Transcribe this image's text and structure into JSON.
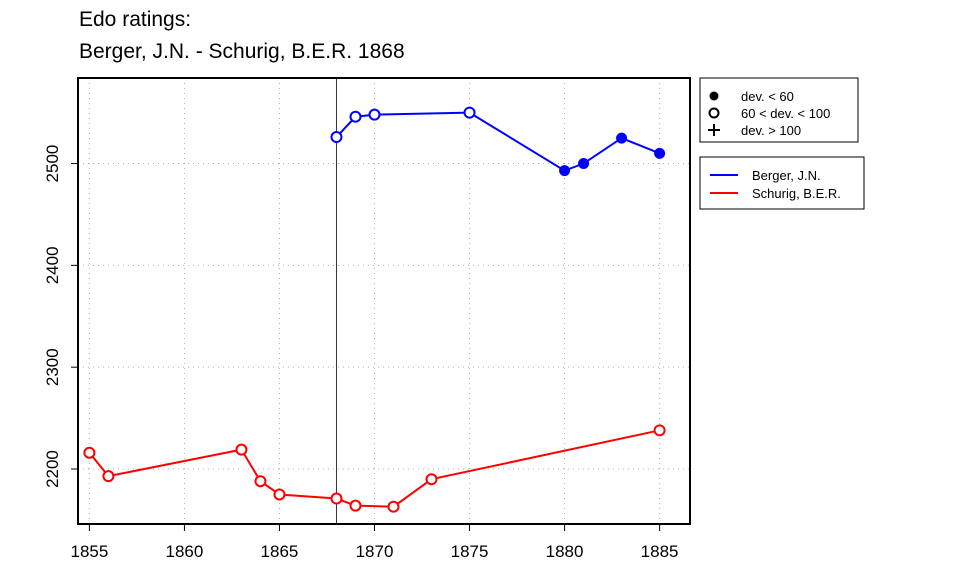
{
  "chart_data": {
    "type": "line",
    "title": "Edo ratings:",
    "subtitle": "Berger, J.N. - Schurig, B.E.R. 1868",
    "xlabel": "",
    "ylabel": "",
    "xlim": [
      1854.4,
      1886.6
    ],
    "ylim": [
      2146,
      2584
    ],
    "x_ticks": [
      1855,
      1860,
      1865,
      1870,
      1875,
      1880,
      1885
    ],
    "y_ticks": [
      2200,
      2300,
      2400,
      2500
    ],
    "grid": true,
    "reference_line_x": 1868,
    "series": [
      {
        "name": "Berger, J.N.",
        "color": "#0000ff",
        "points": [
          {
            "x": 1868,
            "y": 2526,
            "marker": "open"
          },
          {
            "x": 1869,
            "y": 2546,
            "marker": "open"
          },
          {
            "x": 1870,
            "y": 2548,
            "marker": "open"
          },
          {
            "x": 1875,
            "y": 2550,
            "marker": "open"
          },
          {
            "x": 1880,
            "y": 2493,
            "marker": "filled"
          },
          {
            "x": 1881,
            "y": 2500,
            "marker": "filled"
          },
          {
            "x": 1883,
            "y": 2525,
            "marker": "filled"
          },
          {
            "x": 1885,
            "y": 2510,
            "marker": "filled"
          }
        ]
      },
      {
        "name": "Schurig, B.E.R.",
        "color": "#ff0000",
        "points": [
          {
            "x": 1855,
            "y": 2216,
            "marker": "open"
          },
          {
            "x": 1856,
            "y": 2193,
            "marker": "open"
          },
          {
            "x": 1863,
            "y": 2219,
            "marker": "open"
          },
          {
            "x": 1864,
            "y": 2188,
            "marker": "open"
          },
          {
            "x": 1865,
            "y": 2175,
            "marker": "open"
          },
          {
            "x": 1868,
            "y": 2171,
            "marker": "open"
          },
          {
            "x": 1869,
            "y": 2164,
            "marker": "open"
          },
          {
            "x": 1871,
            "y": 2163,
            "marker": "open"
          },
          {
            "x": 1873,
            "y": 2190,
            "marker": "open"
          },
          {
            "x": 1885,
            "y": 2238,
            "marker": "open"
          }
        ]
      }
    ],
    "marker_legend": [
      {
        "marker": "filled",
        "label": "dev. < 60"
      },
      {
        "marker": "open",
        "label": "60 < dev. < 100"
      },
      {
        "marker": "plus",
        "label": "dev. > 100"
      }
    ],
    "legend_position": "right"
  }
}
